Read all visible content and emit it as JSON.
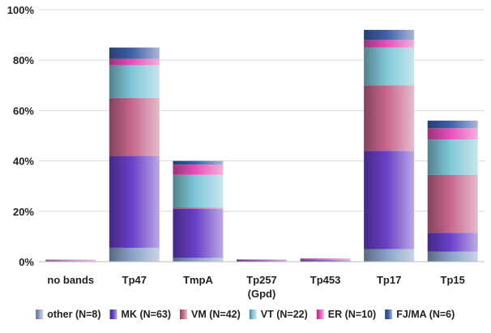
{
  "chart_data": {
    "type": "bar",
    "stacked": true,
    "title": "",
    "xlabel": "",
    "ylabel": "",
    "ylim": [
      0,
      100
    ],
    "y_ticks": [
      "0%",
      "20%",
      "40%",
      "60%",
      "80%",
      "100%"
    ],
    "grid": true,
    "legend_position": "bottom",
    "categories": [
      [
        "no bands"
      ],
      [
        "Tp47"
      ],
      [
        "TmpA"
      ],
      [
        "Tp257",
        "(Gpd)"
      ],
      [
        "Tp453"
      ],
      [
        "Tp17"
      ],
      [
        "Tp15"
      ]
    ],
    "series": [
      {
        "name": "other (N=8)",
        "color": "#8aa2c8",
        "values": [
          0.2,
          5.5,
          1.5,
          0.1,
          0.1,
          5.0,
          4.0
        ]
      },
      {
        "name": "MK (N=63)",
        "color": "#6a3fc8",
        "values": [
          0.1,
          36.5,
          19.5,
          0.5,
          0.5,
          39.0,
          7.5
        ]
      },
      {
        "name": "VM (N=42)",
        "color": "#c8678e",
        "values": [
          0.1,
          23.0,
          0.5,
          0.1,
          0.3,
          26.0,
          23.0
        ]
      },
      {
        "name": "VT (N=22)",
        "color": "#80c8d8",
        "values": [
          0.1,
          13.0,
          13.0,
          0.1,
          0.1,
          15.0,
          14.0
        ]
      },
      {
        "name": "ER (N=10)",
        "color": "#e84fb8",
        "values": [
          0.3,
          2.5,
          4.0,
          0.1,
          0.3,
          3.0,
          4.5
        ]
      },
      {
        "name": "FJ/MA (N=6)",
        "color": "#3f5fa8",
        "values": [
          0.0,
          4.5,
          1.5,
          0.0,
          0.0,
          4.0,
          3.0
        ]
      }
    ]
  }
}
